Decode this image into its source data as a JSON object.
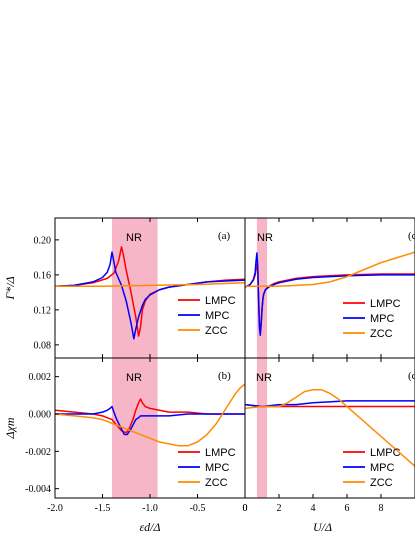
{
  "chart_data": [
    {
      "type": "line",
      "panel_label": "(a)",
      "xlabel": "εd/Δ",
      "ylabel": "Γ*/Δ",
      "xlim": [
        -2.0,
        0.0
      ],
      "ylim": [
        0.065,
        0.225
      ],
      "xticks": [
        "-2.0",
        "-1.5",
        "-1.0",
        "-0.5",
        "0"
      ],
      "yticks": [
        "0.08",
        "0.12",
        "0.16",
        "0.20"
      ],
      "shaded_region": {
        "label": "NR",
        "x": [
          -1.4,
          -0.92
        ],
        "color": "#f7b6c8"
      },
      "legend": [
        "LMPC",
        "MPC",
        "ZCC"
      ],
      "series": [
        {
          "name": "LMPC",
          "color": "#ff0000",
          "x": [
            -2.0,
            -1.8,
            -1.6,
            -1.45,
            -1.38,
            -1.33,
            -1.3,
            -1.28,
            -1.25,
            -1.2,
            -1.15,
            -1.12,
            -1.1,
            -1.08,
            -1.05,
            -1.0,
            -0.9,
            -0.8,
            -0.6,
            -0.4,
            -0.2,
            0.0
          ],
          "y": [
            0.147,
            0.148,
            0.151,
            0.156,
            0.162,
            0.176,
            0.192,
            0.183,
            0.165,
            0.14,
            0.112,
            0.09,
            0.1,
            0.12,
            0.13,
            0.138,
            0.143,
            0.146,
            0.149,
            0.152,
            0.154,
            0.155
          ]
        },
        {
          "name": "MPC",
          "color": "#0000ff",
          "x": [
            -2.0,
            -1.8,
            -1.6,
            -1.5,
            -1.45,
            -1.42,
            -1.4,
            -1.38,
            -1.36,
            -1.3,
            -1.25,
            -1.2,
            -1.17,
            -1.15,
            -1.12,
            -1.08,
            -1.05,
            -1.0,
            -0.9,
            -0.8,
            -0.6,
            -0.4,
            -0.2,
            0.0
          ],
          "y": [
            0.147,
            0.148,
            0.152,
            0.157,
            0.163,
            0.172,
            0.186,
            0.175,
            0.163,
            0.148,
            0.13,
            0.105,
            0.087,
            0.098,
            0.112,
            0.125,
            0.132,
            0.137,
            0.143,
            0.146,
            0.149,
            0.152,
            0.153,
            0.154
          ]
        },
        {
          "name": "ZCC",
          "color": "#ff8c00",
          "x": [
            -2.0,
            -1.5,
            -1.0,
            -0.5,
            0.0
          ],
          "y": [
            0.147,
            0.147,
            0.148,
            0.149,
            0.151
          ]
        }
      ]
    },
    {
      "type": "line",
      "panel_label": "(c)",
      "xlabel": "U/Δ",
      "ylabel": "",
      "xlim": [
        0,
        10
      ],
      "ylim": [
        0.065,
        0.225
      ],
      "xticks": [
        "0",
        "2",
        "4",
        "6",
        "8"
      ],
      "yticks": [],
      "shaded_region": {
        "label": "NR",
        "x": [
          0.7,
          1.3
        ],
        "color": "#f7b6c8"
      },
      "legend": [
        "LMPC",
        "MPC",
        "ZCC"
      ],
      "series": [
        {
          "name": "LMPC",
          "color": "#ff0000",
          "x": [
            0.0,
            0.3,
            0.5,
            0.6,
            0.65,
            0.7,
            0.75,
            0.8,
            0.85,
            0.9,
            0.95,
            1.0,
            1.05,
            1.1,
            1.2,
            1.4,
            1.7,
            2.0,
            3.0,
            4.0,
            6.0,
            8.0,
            10.0
          ],
          "y": [
            0.146,
            0.149,
            0.154,
            0.16,
            0.166,
            0.172,
            0.165,
            0.135,
            0.105,
            0.094,
            0.105,
            0.12,
            0.132,
            0.138,
            0.143,
            0.147,
            0.15,
            0.152,
            0.156,
            0.158,
            0.16,
            0.161,
            0.161
          ]
        },
        {
          "name": "MPC",
          "color": "#0000ff",
          "x": [
            0.0,
            0.3,
            0.5,
            0.6,
            0.65,
            0.7,
            0.75,
            0.8,
            0.85,
            0.9,
            0.95,
            1.0,
            1.05,
            1.1,
            1.2,
            1.4,
            1.7,
            2.0,
            3.0,
            4.0,
            6.0,
            8.0,
            10.0
          ],
          "y": [
            0.146,
            0.149,
            0.155,
            0.163,
            0.176,
            0.185,
            0.17,
            0.13,
            0.1,
            0.091,
            0.103,
            0.12,
            0.132,
            0.138,
            0.143,
            0.146,
            0.149,
            0.151,
            0.155,
            0.157,
            0.159,
            0.16,
            0.16
          ]
        },
        {
          "name": "ZCC",
          "color": "#ff8c00",
          "x": [
            0.0,
            1.0,
            2.0,
            3.0,
            4.0,
            5.0,
            6.0,
            7.0,
            8.0,
            9.0,
            10.0
          ],
          "y": [
            0.147,
            0.147,
            0.147,
            0.148,
            0.149,
            0.152,
            0.158,
            0.166,
            0.174,
            0.18,
            0.186
          ]
        }
      ]
    },
    {
      "type": "line",
      "panel_label": "(b)",
      "xlabel": "εd/Δ",
      "ylabel": "Δχm",
      "xlim": [
        -2.0,
        0.0
      ],
      "ylim": [
        -0.0045,
        0.003
      ],
      "xticks": [
        "-2.0",
        "-1.5",
        "-1.0",
        "-0.5",
        "0"
      ],
      "yticks": [
        "-0.004",
        "-0.002",
        "0.000",
        "0.002"
      ],
      "shaded_region": {
        "label": "NR",
        "x": [
          -1.4,
          -0.92
        ],
        "color": "#f7b6c8"
      },
      "legend": [
        "LMPC",
        "MPC",
        "ZCC"
      ],
      "series": [
        {
          "name": "LMPC",
          "color": "#ff0000",
          "x": [
            -2.0,
            -1.8,
            -1.6,
            -1.5,
            -1.4,
            -1.35,
            -1.3,
            -1.25,
            -1.22,
            -1.18,
            -1.15,
            -1.12,
            -1.1,
            -1.08,
            -1.05,
            -1.0,
            -0.9,
            -0.8,
            -0.6,
            -0.4,
            -0.2,
            0.0
          ],
          "y": [
            0.0002,
            0.0001,
            0.0,
            -0.0001,
            -0.0003,
            -0.0006,
            -0.0009,
            -0.001,
            -0.0008,
            -0.0003,
            0.0002,
            0.0006,
            0.0008,
            0.0006,
            0.0004,
            0.0003,
            0.0002,
            0.0001,
            0.0001,
            0.0,
            0.0,
            0.0
          ]
        },
        {
          "name": "MPC",
          "color": "#0000ff",
          "x": [
            -2.0,
            -1.8,
            -1.6,
            -1.5,
            -1.45,
            -1.42,
            -1.4,
            -1.38,
            -1.35,
            -1.3,
            -1.27,
            -1.24,
            -1.2,
            -1.17,
            -1.15,
            -1.12,
            -1.1,
            -1.05,
            -1.0,
            -0.9,
            -0.8,
            -0.6,
            -0.4,
            -0.2,
            0.0
          ],
          "y": [
            0.0,
            0.0,
            0.0,
            0.0001,
            0.0002,
            0.0003,
            0.0004,
            0.0001,
            -0.0003,
            -0.0008,
            -0.0011,
            -0.0011,
            -0.0008,
            -0.0005,
            -0.0003,
            -0.0002,
            -0.0001,
            -0.0001,
            -0.0001,
            -0.0001,
            -0.0001,
            0.0,
            0.0,
            0.0,
            0.0
          ]
        },
        {
          "name": "ZCC",
          "color": "#ff8c00",
          "x": [
            -2.0,
            -1.8,
            -1.6,
            -1.5,
            -1.4,
            -1.3,
            -1.2,
            -1.1,
            -1.0,
            -0.9,
            -0.8,
            -0.7,
            -0.6,
            -0.5,
            -0.4,
            -0.3,
            -0.2,
            -0.1,
            -0.05,
            0.0
          ],
          "y": [
            0.0,
            -0.0001,
            -0.0002,
            -0.0003,
            -0.0005,
            -0.0007,
            -0.0009,
            -0.0011,
            -0.0013,
            -0.0015,
            -0.0016,
            -0.0017,
            -0.0017,
            -0.0015,
            -0.0011,
            -0.0005,
            0.0003,
            0.0011,
            0.0014,
            0.0016
          ]
        }
      ]
    },
    {
      "type": "line",
      "panel_label": "(d)",
      "xlabel": "U/Δ",
      "ylabel": "",
      "xlim": [
        0,
        10
      ],
      "ylim": [
        -0.0045,
        0.003
      ],
      "xticks": [
        "0",
        "2",
        "4",
        "6",
        "8"
      ],
      "yticks": [],
      "shaded_region": {
        "label": "NR",
        "x": [
          0.7,
          1.3
        ],
        "color": "#f7b6c8"
      },
      "legend": [
        "LMPC",
        "MPC",
        "ZCC"
      ],
      "series": [
        {
          "name": "LMPC",
          "color": "#ff0000",
          "x": [
            0.0,
            1.0,
            2.0,
            4.0,
            6.0,
            8.0,
            10.0
          ],
          "y": [
            0.0005,
            0.0004,
            0.0004,
            0.0004,
            0.0004,
            0.0004,
            0.0004
          ]
        },
        {
          "name": "MPC",
          "color": "#0000ff",
          "x": [
            0.0,
            1.0,
            2.0,
            3.0,
            4.0,
            6.0,
            8.0,
            10.0
          ],
          "y": [
            0.0005,
            0.0004,
            0.0005,
            0.0005,
            0.0006,
            0.0007,
            0.0007,
            0.0007
          ]
        },
        {
          "name": "ZCC",
          "color": "#ff8c00",
          "x": [
            0.0,
            1.0,
            2.0,
            2.5,
            3.0,
            3.5,
            4.0,
            4.5,
            5.0,
            5.5,
            6.0,
            7.0,
            8.0,
            9.0,
            10.0
          ],
          "y": [
            0.0003,
            0.0004,
            0.0004,
            0.0006,
            0.0009,
            0.0012,
            0.0013,
            0.0013,
            0.0011,
            0.0008,
            0.0004,
            -0.0004,
            -0.0012,
            -0.002,
            -0.0028
          ]
        }
      ]
    }
  ]
}
